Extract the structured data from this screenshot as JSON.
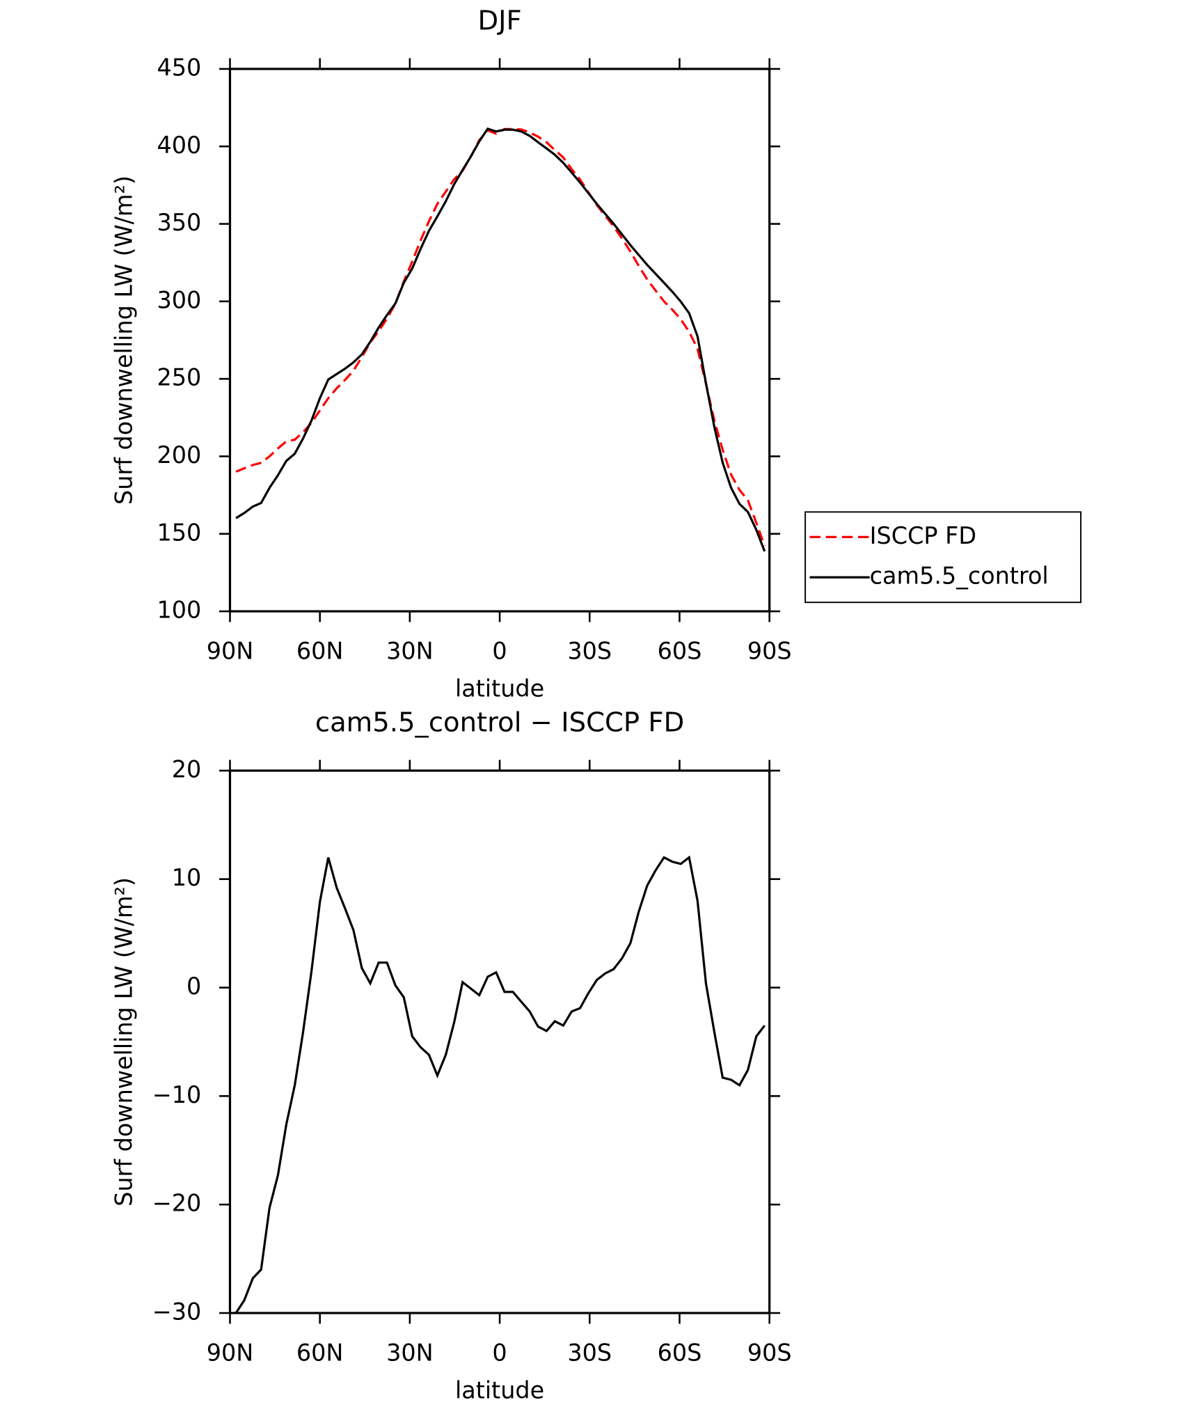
{
  "chart_data": [
    {
      "type": "line",
      "title": "DJF",
      "ylabel": "Surf downwelling LW (W/m²)",
      "xlabel": "latitude",
      "x": [
        88,
        85.2,
        82.4,
        79.6,
        76.8,
        74,
        71.2,
        68.4,
        65.6,
        62.8,
        60,
        57.2,
        54.4,
        51.6,
        48.8,
        46,
        43.2,
        40.4,
        37.6,
        34.8,
        32,
        29.2,
        26.4,
        23.6,
        20.8,
        18,
        15.2,
        12.4,
        9.6,
        6.8,
        4,
        1.2,
        -1.6,
        -4.4,
        -7.2,
        -10,
        -12.8,
        -15.6,
        -18.4,
        -21.2,
        -24,
        -26.8,
        -29.6,
        -32.4,
        -35.2,
        -38,
        -40.8,
        -43.6,
        -46.4,
        -49.2,
        -52,
        -54.8,
        -57.6,
        -60.4,
        -63.2,
        -66,
        -68.8,
        -71.6,
        -74.4,
        -77.2,
        -80,
        -82.8,
        -85.6,
        -88.4
      ],
      "series": [
        {
          "name": "ISCCP FD",
          "color": "#ff0000",
          "dash": true,
          "values": [
            190.1,
            192.3,
            194.4,
            195.9,
            200.0,
            205.1,
            209.7,
            210.7,
            215.6,
            221.6,
            229.6,
            237.6,
            243.9,
            249.3,
            255.3,
            264.0,
            273.5,
            280.8,
            288.9,
            298.5,
            312.9,
            325.7,
            339.4,
            351.7,
            362.9,
            370.8,
            378.8,
            384.3,
            393.6,
            404.0,
            410.4,
            408.2,
            411.2,
            411.2,
            410.9,
            409.0,
            406.3,
            402.7,
            397.7,
            392.9,
            385.3,
            378.6,
            370.3,
            362.2,
            355.2,
            348.4,
            340.5,
            332.2,
            322.9,
            314.2,
            307.0,
            300.0,
            294.6,
            288.5,
            280.4,
            269.4,
            246.9,
            223.1,
            204.2,
            188.2,
            178.3,
            171.7,
            157.1,
            142.2
          ]
        },
        {
          "name": "cam5.5_control",
          "color": "#000000",
          "dash": false,
          "values": [
            160.1,
            163.5,
            167.6,
            169.9,
            179.7,
            187.8,
            197.1,
            201.7,
            211.5,
            223.1,
            237.5,
            249.6,
            253.1,
            256.6,
            260.6,
            265.8,
            273.9,
            283.1,
            291.2,
            298.7,
            312.0,
            321.2,
            333.9,
            345.5,
            354.8,
            364.6,
            375.6,
            384.8,
            393.5,
            403.3,
            411.4,
            409.6,
            410.8,
            410.8,
            409.6,
            406.8,
            402.7,
            398.7,
            394.6,
            389.4,
            383.1,
            376.7,
            369.8,
            362.9,
            356.5,
            350.1,
            343.2,
            336.3,
            329.9,
            323.6,
            317.8,
            312.0,
            306.2,
            299.9,
            292.4,
            277.4,
            247.3,
            219.0,
            195.9,
            179.7,
            169.3,
            164.1,
            152.6,
            138.7
          ]
        }
      ],
      "xlim": [
        90,
        -90
      ],
      "xticks": [
        {
          "value": 90,
          "label": "90N"
        },
        {
          "value": 60,
          "label": "60N"
        },
        {
          "value": 30,
          "label": "30N"
        },
        0,
        {
          "value": -30,
          "label": "30S"
        },
        {
          "value": -60,
          "label": "60S"
        },
        {
          "value": -90,
          "label": "90S"
        }
      ],
      "ylim": [
        100,
        450
      ],
      "yticks": [
        100,
        150,
        200,
        250,
        300,
        350,
        400,
        450
      ],
      "legend": "right"
    },
    {
      "type": "line",
      "title": "cam5.5_control − ISCCP FD",
      "ylabel": "Surf downwelling LW (W/m²)",
      "xlabel": "latitude",
      "x": [
        88,
        85.2,
        82.4,
        79.6,
        76.8,
        74,
        71.2,
        68.4,
        65.6,
        62.8,
        60,
        57.2,
        54.4,
        51.6,
        48.8,
        46,
        43.2,
        40.4,
        37.6,
        34.8,
        32,
        29.2,
        26.4,
        23.6,
        20.8,
        18,
        15.2,
        12.4,
        9.6,
        6.8,
        4,
        1.2,
        -1.6,
        -4.4,
        -7.2,
        -10,
        -12.8,
        -15.6,
        -18.4,
        -21.2,
        -24,
        -26.8,
        -29.6,
        -32.4,
        -35.2,
        -38,
        -40.8,
        -43.6,
        -46.4,
        -49.2,
        -52,
        -54.8,
        -57.6,
        -60.4,
        -63.2,
        -66,
        -68.8,
        -71.6,
        -74.4,
        -77.2,
        -80,
        -82.8,
        -85.6,
        -88.4
      ],
      "color": "#000000",
      "values": [
        -30,
        -28.8,
        -26.8,
        -26,
        -20.3,
        -17.3,
        -12.6,
        -9.0,
        -4.1,
        1.5,
        7.9,
        12.0,
        9.2,
        7.3,
        5.3,
        1.8,
        0.4,
        2.3,
        2.3,
        0.2,
        -0.9,
        -4.5,
        -5.5,
        -6.2,
        -8.1,
        -6.2,
        -3.2,
        0.5,
        -0.1,
        -0.7,
        1.0,
        1.4,
        -0.4,
        -0.4,
        -1.3,
        -2.2,
        -3.6,
        -4.0,
        -3.1,
        -3.5,
        -2.2,
        -1.9,
        -0.5,
        0.7,
        1.3,
        1.7,
        2.7,
        4.1,
        7.0,
        9.4,
        10.8,
        12.0,
        11.6,
        11.4,
        12.0,
        8.0,
        0.4,
        -4.1,
        -8.3,
        -8.5,
        -9.0,
        -7.6,
        -4.5,
        -3.5
      ],
      "xlim": [
        90,
        -90
      ],
      "xticks": [
        {
          "value": 90,
          "label": "90N"
        },
        {
          "value": 60,
          "label": "60N"
        },
        {
          "value": 30,
          "label": "30N"
        },
        0,
        {
          "value": -30,
          "label": "30S"
        },
        {
          "value": -60,
          "label": "60S"
        },
        {
          "value": -90,
          "label": "90S"
        }
      ],
      "ylim": [
        -30,
        20
      ],
      "yticks": [
        {
          "value": -30,
          "label": "−30"
        },
        {
          "value": -20,
          "label": "−20"
        },
        {
          "value": -10,
          "label": "−10"
        },
        0,
        10,
        20
      ]
    }
  ]
}
